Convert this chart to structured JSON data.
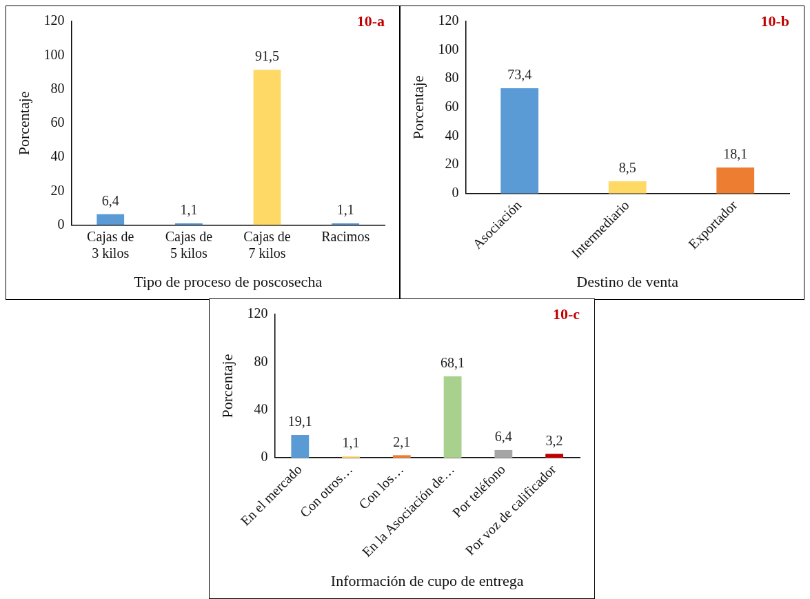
{
  "chart_data": [
    {
      "type": "bar",
      "xlabel": "Tipo de proceso de poscosecha",
      "ylabel": "Porcentaje",
      "categories": [
        "Cajas de 3 kilos",
        "Cajas de 5 kilos",
        "Cajas de 7 kilos",
        "Racimos"
      ],
      "values": [
        6.4,
        1.1,
        91.5,
        1.1
      ],
      "colors": [
        "#5b9bd5",
        "#5b9bd5",
        "#ffd966",
        "#5b9bd5"
      ],
      "value_labels": [
        "6,4",
        "1,1",
        "91,5",
        "1,1"
      ],
      "ylim": [
        0,
        120
      ],
      "yticks": [
        0,
        20,
        40,
        60,
        80,
        100,
        120
      ],
      "grid": false,
      "legend": false,
      "annotations": [
        "10-a"
      ]
    },
    {
      "type": "bar",
      "xlabel": "Destino de venta",
      "ylabel": "Porcentaje",
      "categories": [
        "Asociación",
        "Intermediario",
        "Exportador"
      ],
      "values": [
        73.4,
        8.5,
        18.1
      ],
      "colors": [
        "#5b9bd5",
        "#ffd966",
        "#ed7d31"
      ],
      "value_labels": [
        "73,4",
        "8,5",
        "18,1"
      ],
      "ylim": [
        0,
        120
      ],
      "yticks": [
        0,
        20,
        40,
        60,
        80,
        100,
        120
      ],
      "grid": false,
      "legend": false,
      "annotations": [
        "10-b"
      ]
    },
    {
      "type": "bar",
      "xlabel": "Información de cupo de entrega",
      "ylabel": "Porcentaje",
      "categories": [
        "En el mercado",
        "Con otros…",
        "Con los…",
        "En la Asociación de…",
        "Por teléfono",
        "Por voz de calificador"
      ],
      "values": [
        19.1,
        1.1,
        2.1,
        68.1,
        6.4,
        3.2
      ],
      "colors": [
        "#5b9bd5",
        "#ffd966",
        "#ed7d31",
        "#a9d18e",
        "#a5a5a5",
        "#c00000"
      ],
      "value_labels": [
        "19,1",
        "1,1",
        "2,1",
        "68,1",
        "6,4",
        "3,2"
      ],
      "ylim": [
        0,
        120
      ],
      "yticks": [
        0,
        40,
        80,
        120
      ],
      "grid": false,
      "legend": false,
      "annotations": [
        "10-c"
      ]
    }
  ]
}
